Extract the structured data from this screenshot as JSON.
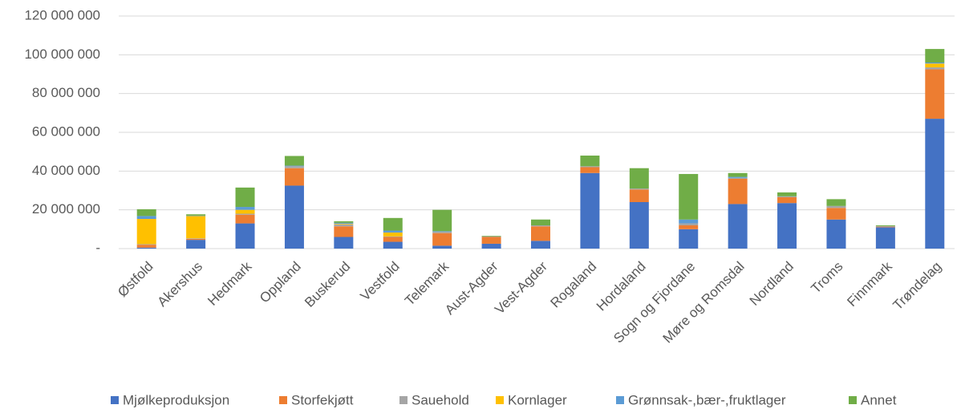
{
  "chart_data": {
    "type": "stacked_bar",
    "categories": [
      "Østfold",
      "Akershus",
      "Hedmark",
      "Oppland",
      "Buskerud",
      "Vestfold",
      "Telemark",
      "Aust-Agder",
      "Vest-Agder",
      "Rogaland",
      "Hordaland",
      "Sogn og Fjordane",
      "Møre og Romsdal",
      "Nordland",
      "Troms",
      "Finnmark",
      "Trøndelag"
    ],
    "series": [
      {
        "name": "Mjølkeproduksjon",
        "color": "#4472c4",
        "values": [
          500000,
          4500000,
          13000000,
          32500000,
          6000000,
          3500000,
          1500000,
          2500000,
          4000000,
          39000000,
          24000000,
          10000000,
          23000000,
          23500000,
          15000000,
          11000000,
          67000000
        ]
      },
      {
        "name": "Storfekjøtt",
        "color": "#ed7d31",
        "values": [
          1500000,
          500000,
          4500000,
          9000000,
          5500000,
          2500000,
          6500000,
          3500000,
          7500000,
          3000000,
          6500000,
          2000000,
          13000000,
          3000000,
          6000000,
          300000,
          25500000
        ]
      },
      {
        "name": "Sauehold",
        "color": "#a5a5a5",
        "values": [
          300000,
          300000,
          500000,
          1000000,
          1000000,
          300000,
          700000,
          300000,
          500000,
          500000,
          500000,
          1000000,
          500000,
          500000,
          1000000,
          300000,
          1000000
        ]
      },
      {
        "name": "Kornlager",
        "color": "#ffc000",
        "values": [
          13000000,
          11500000,
          2000000,
          0,
          300000,
          2000000,
          0,
          0,
          0,
          0,
          0,
          0,
          0,
          0,
          0,
          0,
          2000000
        ]
      },
      {
        "name": "Grønnsak-,bær-,fruktlager",
        "color": "#5b9bd5",
        "values": [
          1500000,
          200000,
          1500000,
          300000,
          500000,
          1000000,
          300000,
          0,
          0,
          0,
          0,
          2000000,
          500000,
          0,
          0,
          0,
          500000
        ]
      },
      {
        "name": "Annet",
        "color": "#70ad47",
        "values": [
          3500000,
          700000,
          10000000,
          5000000,
          800000,
          6500000,
          11000000,
          300000,
          3000000,
          5500000,
          10500000,
          23500000,
          2000000,
          2000000,
          3500000,
          400000,
          7000000
        ]
      }
    ],
    "ylim": [
      0,
      120000000
    ],
    "yticks": [
      {
        "value": 0,
        "label": "-"
      },
      {
        "value": 20000000,
        "label": "20 000 000"
      },
      {
        "value": 40000000,
        "label": "40 000 000"
      },
      {
        "value": 60000000,
        "label": "60 000 000"
      },
      {
        "value": 80000000,
        "label": "80 000 000"
      },
      {
        "value": 100000000,
        "label": "100 000 000"
      },
      {
        "value": 120000000,
        "label": "120 000 000"
      }
    ],
    "grid": true,
    "legend": "bottom"
  }
}
